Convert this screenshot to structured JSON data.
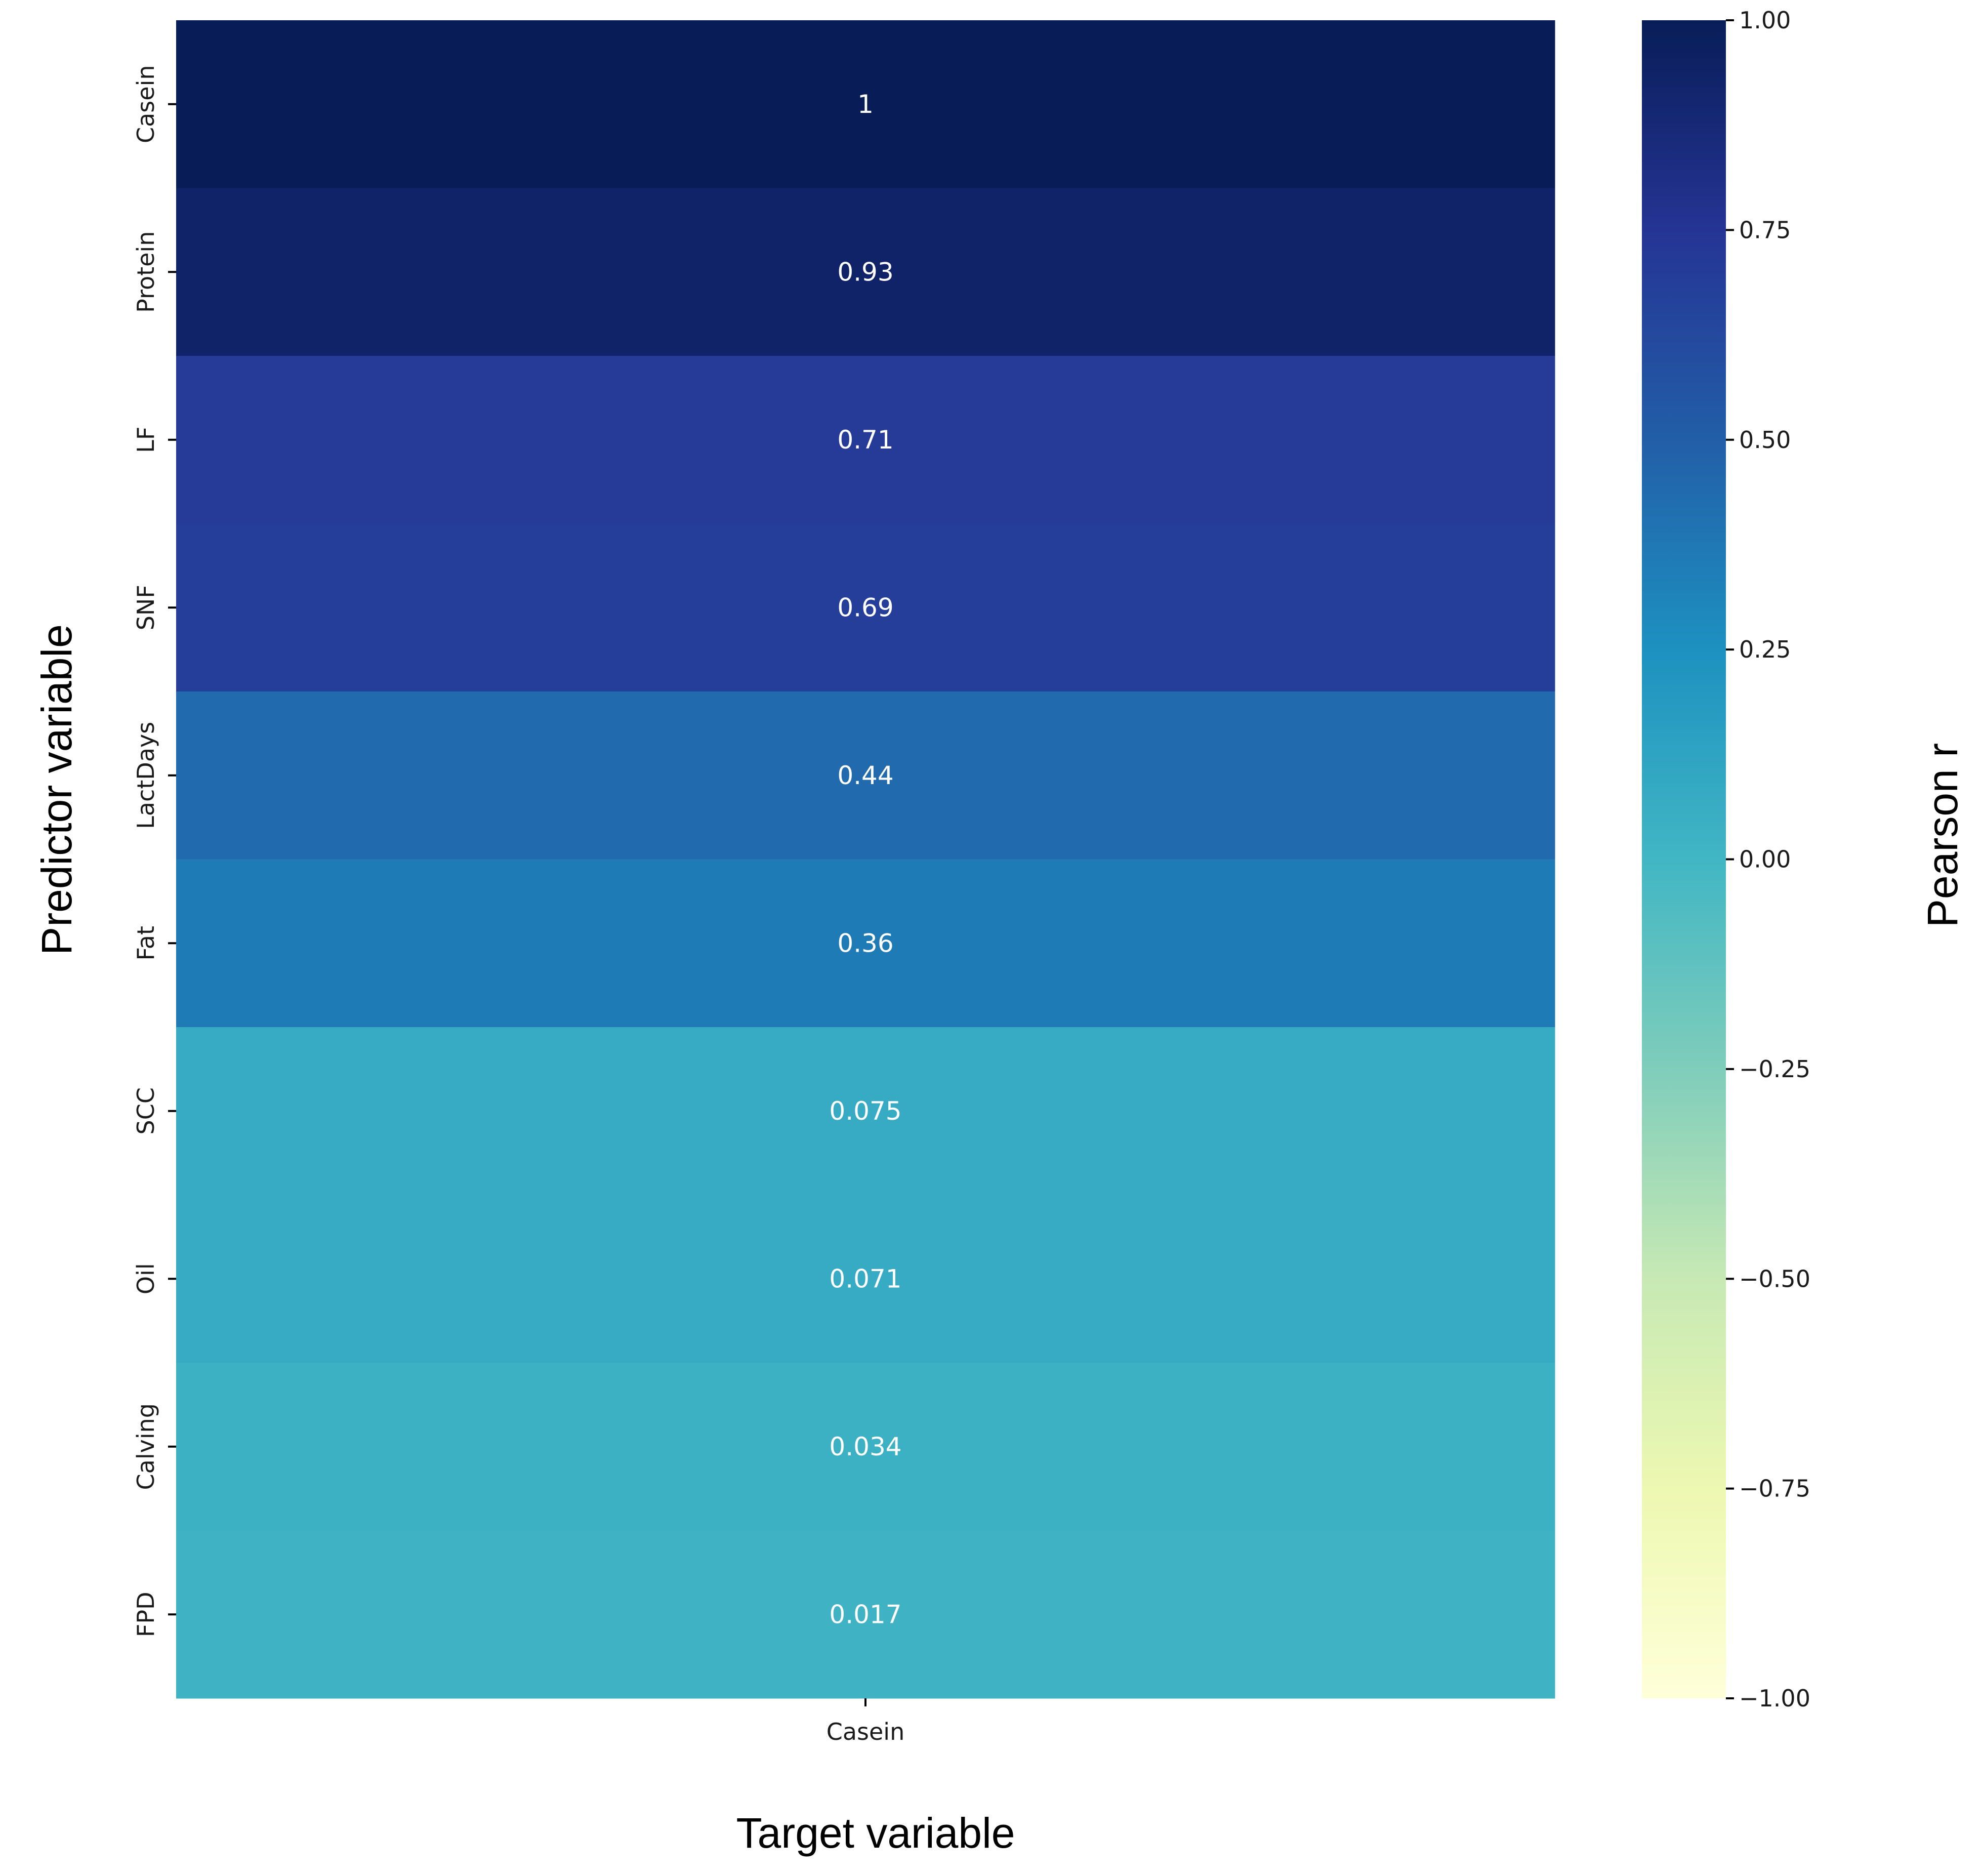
{
  "chart_data": {
    "type": "heatmap",
    "title": "",
    "xlabel": "Target variable",
    "ylabel": "Predictor variable",
    "columns": [
      "Casein"
    ],
    "rows": [
      "Casein",
      "Protein",
      "LF",
      "SNF",
      "LactDays",
      "Fat",
      "SCC",
      "Oil",
      "Calving",
      "FPD"
    ],
    "values": [
      1,
      0.93,
      0.71,
      0.69,
      0.44,
      0.36,
      0.075,
      0.071,
      0.034,
      0.017
    ],
    "value_labels": [
      "1",
      "0.93",
      "0.71",
      "0.69",
      "0.44",
      "0.36",
      "0.075",
      "0.071",
      "0.034",
      "0.017"
    ],
    "colorbar": {
      "label": "Pearson r",
      "range": [
        -1.0,
        1.0
      ],
      "ticks": [
        1.0,
        0.75,
        0.5,
        0.25,
        0.0,
        -0.25,
        -0.5,
        -0.75,
        -1.0
      ],
      "tick_labels": [
        "1.00",
        "0.75",
        "0.50",
        "0.25",
        "0.00",
        "−0.25",
        "−0.50",
        "−0.75",
        "−1.00"
      ],
      "colormap": "YlGnBu",
      "colormap_stops": [
        "#ffffd9",
        "#edf8b1",
        "#c7e9b4",
        "#7fcdbb",
        "#41b6c4",
        "#1d91c0",
        "#225ea8",
        "#253494",
        "#081d58"
      ]
    },
    "grid": false,
    "legend": "colorbar-right"
  }
}
